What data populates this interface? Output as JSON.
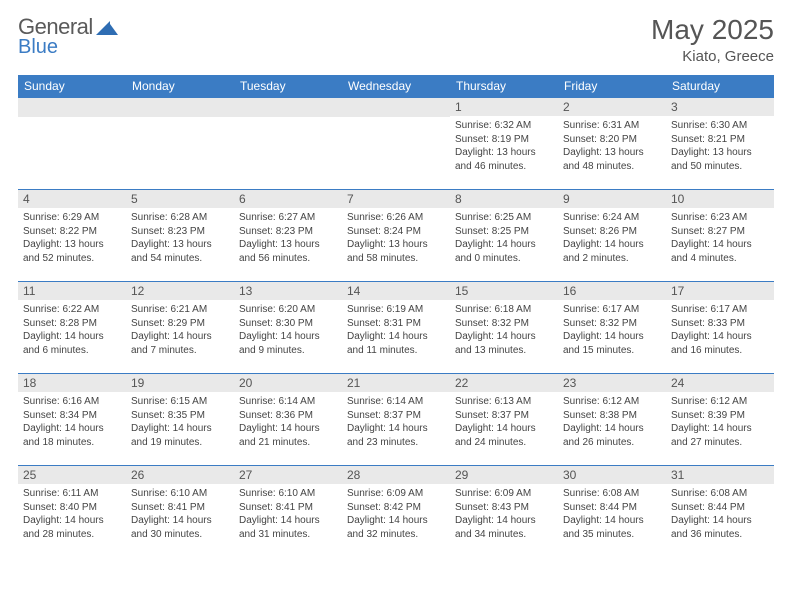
{
  "logo": {
    "word1": "General",
    "word2": "Blue"
  },
  "title": "May 2025",
  "subtitle": "Kiato, Greece",
  "colors": {
    "header_bg": "#3b7cc4",
    "header_fg": "#ffffff",
    "daynum_bg": "#e9e9e9",
    "border": "#3b7cc4",
    "text": "#444444",
    "title": "#555555"
  },
  "weekdays": [
    "Sunday",
    "Monday",
    "Tuesday",
    "Wednesday",
    "Thursday",
    "Friday",
    "Saturday"
  ],
  "weeks": [
    [
      null,
      null,
      null,
      null,
      {
        "n": "1",
        "sr": "6:32 AM",
        "ss": "8:19 PM",
        "dl": "13 hours and 46 minutes."
      },
      {
        "n": "2",
        "sr": "6:31 AM",
        "ss": "8:20 PM",
        "dl": "13 hours and 48 minutes."
      },
      {
        "n": "3",
        "sr": "6:30 AM",
        "ss": "8:21 PM",
        "dl": "13 hours and 50 minutes."
      }
    ],
    [
      {
        "n": "4",
        "sr": "6:29 AM",
        "ss": "8:22 PM",
        "dl": "13 hours and 52 minutes."
      },
      {
        "n": "5",
        "sr": "6:28 AM",
        "ss": "8:23 PM",
        "dl": "13 hours and 54 minutes."
      },
      {
        "n": "6",
        "sr": "6:27 AM",
        "ss": "8:23 PM",
        "dl": "13 hours and 56 minutes."
      },
      {
        "n": "7",
        "sr": "6:26 AM",
        "ss": "8:24 PM",
        "dl": "13 hours and 58 minutes."
      },
      {
        "n": "8",
        "sr": "6:25 AM",
        "ss": "8:25 PM",
        "dl": "14 hours and 0 minutes."
      },
      {
        "n": "9",
        "sr": "6:24 AM",
        "ss": "8:26 PM",
        "dl": "14 hours and 2 minutes."
      },
      {
        "n": "10",
        "sr": "6:23 AM",
        "ss": "8:27 PM",
        "dl": "14 hours and 4 minutes."
      }
    ],
    [
      {
        "n": "11",
        "sr": "6:22 AM",
        "ss": "8:28 PM",
        "dl": "14 hours and 6 minutes."
      },
      {
        "n": "12",
        "sr": "6:21 AM",
        "ss": "8:29 PM",
        "dl": "14 hours and 7 minutes."
      },
      {
        "n": "13",
        "sr": "6:20 AM",
        "ss": "8:30 PM",
        "dl": "14 hours and 9 minutes."
      },
      {
        "n": "14",
        "sr": "6:19 AM",
        "ss": "8:31 PM",
        "dl": "14 hours and 11 minutes."
      },
      {
        "n": "15",
        "sr": "6:18 AM",
        "ss": "8:32 PM",
        "dl": "14 hours and 13 minutes."
      },
      {
        "n": "16",
        "sr": "6:17 AM",
        "ss": "8:32 PM",
        "dl": "14 hours and 15 minutes."
      },
      {
        "n": "17",
        "sr": "6:17 AM",
        "ss": "8:33 PM",
        "dl": "14 hours and 16 minutes."
      }
    ],
    [
      {
        "n": "18",
        "sr": "6:16 AM",
        "ss": "8:34 PM",
        "dl": "14 hours and 18 minutes."
      },
      {
        "n": "19",
        "sr": "6:15 AM",
        "ss": "8:35 PM",
        "dl": "14 hours and 19 minutes."
      },
      {
        "n": "20",
        "sr": "6:14 AM",
        "ss": "8:36 PM",
        "dl": "14 hours and 21 minutes."
      },
      {
        "n": "21",
        "sr": "6:14 AM",
        "ss": "8:37 PM",
        "dl": "14 hours and 23 minutes."
      },
      {
        "n": "22",
        "sr": "6:13 AM",
        "ss": "8:37 PM",
        "dl": "14 hours and 24 minutes."
      },
      {
        "n": "23",
        "sr": "6:12 AM",
        "ss": "8:38 PM",
        "dl": "14 hours and 26 minutes."
      },
      {
        "n": "24",
        "sr": "6:12 AM",
        "ss": "8:39 PM",
        "dl": "14 hours and 27 minutes."
      }
    ],
    [
      {
        "n": "25",
        "sr": "6:11 AM",
        "ss": "8:40 PM",
        "dl": "14 hours and 28 minutes."
      },
      {
        "n": "26",
        "sr": "6:10 AM",
        "ss": "8:41 PM",
        "dl": "14 hours and 30 minutes."
      },
      {
        "n": "27",
        "sr": "6:10 AM",
        "ss": "8:41 PM",
        "dl": "14 hours and 31 minutes."
      },
      {
        "n": "28",
        "sr": "6:09 AM",
        "ss": "8:42 PM",
        "dl": "14 hours and 32 minutes."
      },
      {
        "n": "29",
        "sr": "6:09 AM",
        "ss": "8:43 PM",
        "dl": "14 hours and 34 minutes."
      },
      {
        "n": "30",
        "sr": "6:08 AM",
        "ss": "8:44 PM",
        "dl": "14 hours and 35 minutes."
      },
      {
        "n": "31",
        "sr": "6:08 AM",
        "ss": "8:44 PM",
        "dl": "14 hours and 36 minutes."
      }
    ]
  ],
  "labels": {
    "sunrise": "Sunrise:",
    "sunset": "Sunset:",
    "daylight": "Daylight:"
  }
}
